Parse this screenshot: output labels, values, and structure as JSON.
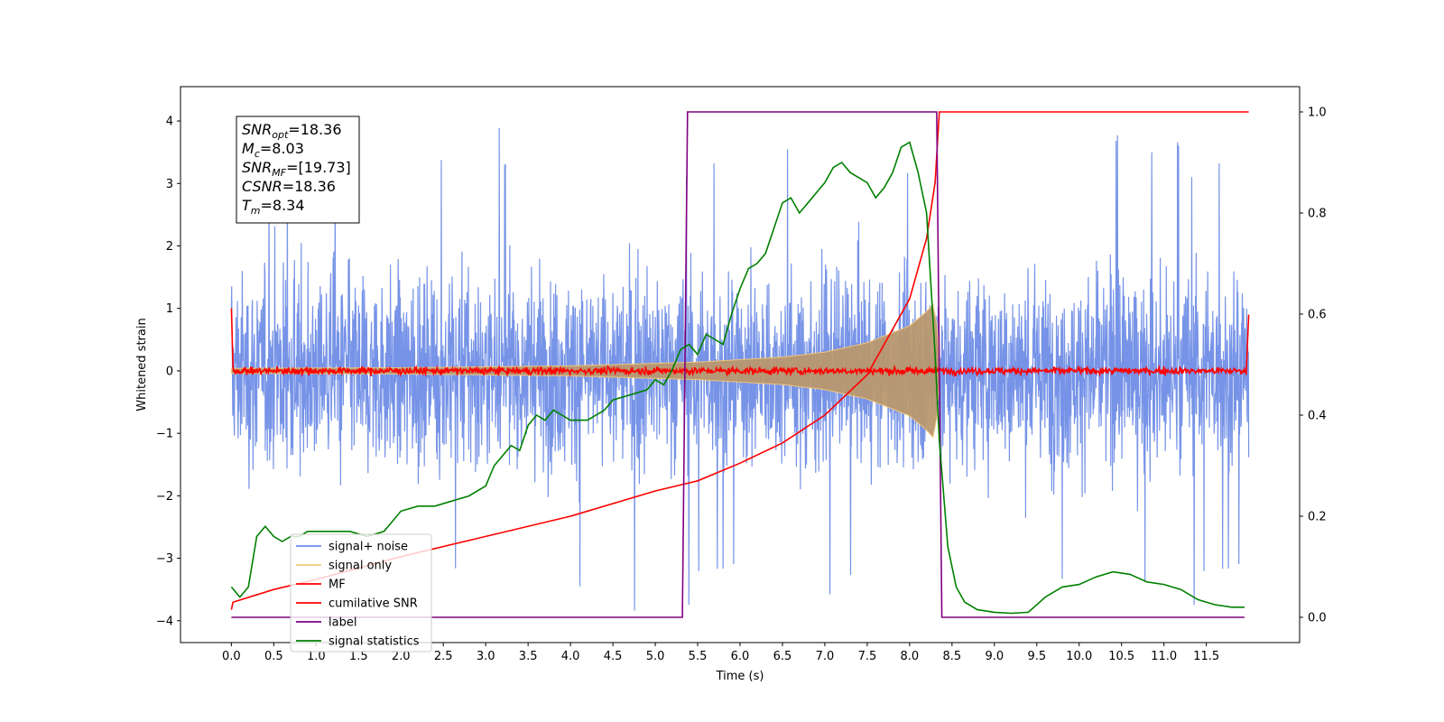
{
  "chart_data": {
    "type": "line",
    "title": "",
    "xlabel": "Time (s)",
    "ylabel": "Whitened strain",
    "y2label": "",
    "xlim": [
      -0.6,
      12.6
    ],
    "ylim": [
      -4.35,
      4.55
    ],
    "y2lim": [
      -0.05,
      1.05
    ],
    "x_ticks": [
      "0.0",
      "0.5",
      "1.0",
      "1.5",
      "2.0",
      "2.5",
      "3.0",
      "3.5",
      "4.0",
      "4.5",
      "5.0",
      "5.5",
      "6.0",
      "6.5",
      "7.0",
      "7.5",
      "8.0",
      "8.5",
      "9.0",
      "9.5",
      "10.0",
      "10.5",
      "11.0",
      "11.5"
    ],
    "y_ticks": [
      "−4",
      "−3",
      "−2",
      "−1",
      "0",
      "1",
      "2",
      "3",
      "4"
    ],
    "y2_ticks": [
      "0.0",
      "0.2",
      "0.4",
      "0.6",
      "0.8",
      "1.0"
    ],
    "grid": false,
    "legend_position": "lower-left",
    "stats_box": [
      {
        "sym": "SNR",
        "sub": "opt",
        "value": "=18.36"
      },
      {
        "sym": "M",
        "sub": "c",
        "value": "=8.03"
      },
      {
        "sym": "SNR",
        "sub": "MF",
        "value": "=[19.73]"
      },
      {
        "sym": "CSNR",
        "sub": "",
        "value": "=18.36"
      },
      {
        "sym": "T",
        "sub": "m",
        "value": "=8.34"
      }
    ],
    "series": [
      {
        "name": "signal+ noise",
        "color": "#6f8de6",
        "axis": "left",
        "kind": "noise",
        "note_envelope_peak": [
          4.15,
          -3.9
        ],
        "x_range": [
          0.0,
          12.0
        ]
      },
      {
        "name": "signal only",
        "color": "#f5c777",
        "axis": "left",
        "kind": "chirp",
        "envelope": {
          "x": [
            0.0,
            2.0,
            4.0,
            5.5,
            6.5,
            7.0,
            7.5,
            8.0,
            8.2,
            8.3,
            8.36
          ],
          "amp": [
            0.04,
            0.05,
            0.08,
            0.14,
            0.22,
            0.3,
            0.45,
            0.72,
            0.95,
            1.1,
            0.0
          ]
        }
      },
      {
        "name": "MF",
        "color": "#ff0000",
        "axis": "left",
        "kind": "mf",
        "x": [
          0.0,
          0.03,
          12.0,
          12.0
        ],
        "y": [
          1.0,
          0.0,
          0.0,
          0.9
        ],
        "noise_amp": 0.08
      },
      {
        "name": "cumilative SNR",
        "color": "#ff0000",
        "axis": "right",
        "x": [
          0.0,
          0.02,
          0.5,
          1.0,
          2.0,
          3.0,
          4.0,
          5.0,
          5.5,
          6.0,
          6.5,
          7.0,
          7.5,
          8.0,
          8.2,
          8.3,
          8.35,
          12.0
        ],
        "y": [
          0.015,
          0.03,
          0.055,
          0.075,
          0.12,
          0.16,
          0.2,
          0.25,
          0.27,
          0.305,
          0.345,
          0.4,
          0.48,
          0.63,
          0.75,
          0.86,
          1.0,
          1.0
        ]
      },
      {
        "name": "label",
        "color": "#800080",
        "axis": "right",
        "x": [
          0.0,
          5.32,
          5.38,
          8.32,
          8.38,
          11.95
        ],
        "y": [
          0.0,
          0.0,
          1.0,
          1.0,
          0.0,
          0.0
        ]
      },
      {
        "name": "signal statistics",
        "color": "#008000",
        "axis": "right",
        "x": [
          0.0,
          0.1,
          0.2,
          0.3,
          0.4,
          0.5,
          0.6,
          0.7,
          0.8,
          0.9,
          1.0,
          1.2,
          1.4,
          1.6,
          1.8,
          2.0,
          2.2,
          2.4,
          2.6,
          2.8,
          3.0,
          3.1,
          3.2,
          3.3,
          3.4,
          3.5,
          3.6,
          3.7,
          3.8,
          3.9,
          4.0,
          4.2,
          4.4,
          4.5,
          4.7,
          4.9,
          5.0,
          5.1,
          5.2,
          5.3,
          5.4,
          5.5,
          5.6,
          5.7,
          5.8,
          5.9,
          6.0,
          6.1,
          6.2,
          6.3,
          6.4,
          6.5,
          6.6,
          6.7,
          6.8,
          6.9,
          7.0,
          7.1,
          7.2,
          7.3,
          7.4,
          7.5,
          7.6,
          7.7,
          7.8,
          7.9,
          8.0,
          8.1,
          8.2,
          8.3,
          8.35,
          8.45,
          8.55,
          8.65,
          8.8,
          9.0,
          9.2,
          9.4,
          9.6,
          9.8,
          10.0,
          10.2,
          10.4,
          10.6,
          10.8,
          11.0,
          11.2,
          11.4,
          11.6,
          11.8,
          11.95
        ],
        "y": [
          0.06,
          0.04,
          0.06,
          0.16,
          0.18,
          0.16,
          0.15,
          0.16,
          0.16,
          0.17,
          0.17,
          0.17,
          0.17,
          0.16,
          0.17,
          0.21,
          0.22,
          0.22,
          0.23,
          0.24,
          0.26,
          0.3,
          0.32,
          0.34,
          0.33,
          0.38,
          0.4,
          0.39,
          0.41,
          0.4,
          0.39,
          0.39,
          0.41,
          0.43,
          0.44,
          0.45,
          0.47,
          0.46,
          0.49,
          0.53,
          0.54,
          0.52,
          0.56,
          0.55,
          0.54,
          0.6,
          0.65,
          0.69,
          0.7,
          0.72,
          0.77,
          0.82,
          0.83,
          0.8,
          0.82,
          0.84,
          0.86,
          0.89,
          0.9,
          0.88,
          0.87,
          0.86,
          0.83,
          0.85,
          0.88,
          0.93,
          0.94,
          0.88,
          0.8,
          0.52,
          0.35,
          0.14,
          0.06,
          0.03,
          0.015,
          0.01,
          0.008,
          0.01,
          0.04,
          0.06,
          0.065,
          0.08,
          0.09,
          0.085,
          0.07,
          0.065,
          0.055,
          0.035,
          0.025,
          0.02,
          0.02
        ]
      }
    ]
  }
}
